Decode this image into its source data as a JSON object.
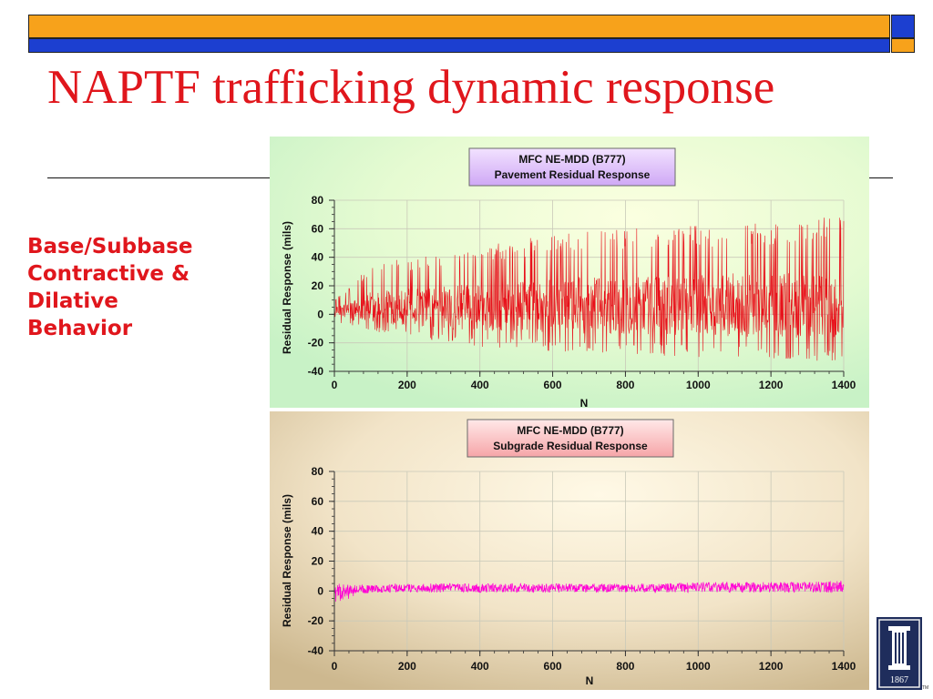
{
  "slide": {
    "title": "NAPTF trafficking dynamic response",
    "side_lines": [
      "Base/Subbase",
      "Contractive &",
      "Dilative",
      "Behavior"
    ],
    "colors": {
      "title": "#e0161c",
      "bar_orange": "#f7a21b",
      "bar_blue": "#1c3fd0"
    },
    "logo": {
      "icon": "university-column-logo",
      "year": "1867",
      "mark": "TM"
    }
  },
  "chart_data": [
    {
      "type": "line",
      "title": [
        "MFC NE-MDD (B777)",
        "Pavement Residual Response"
      ],
      "xlabel": "N",
      "ylabel": "Residual Response (mils)",
      "xlim": [
        0,
        1400
      ],
      "ylim": [
        -40,
        80
      ],
      "xticks": [
        0,
        200,
        400,
        600,
        800,
        1000,
        1200,
        1400
      ],
      "yticks": [
        -40,
        -20,
        0,
        20,
        40,
        60,
        80
      ],
      "grid": true,
      "series": [
        {
          "color": "#e8101a",
          "envelope": {
            "n": [
              0,
              100,
              200,
              300,
              400,
              500,
              600,
              700,
              800,
              900,
              1000,
              1100,
              1200,
              1300,
              1400
            ],
            "upper": [
              10,
              35,
              40,
              44,
              48,
              52,
              56,
              58,
              60,
              62,
              63,
              64,
              65,
              68,
              70
            ],
            "lower": [
              -5,
              -12,
              -16,
              -20,
              -23,
              -24,
              -26,
              -27,
              -28,
              -29,
              -30,
              -31,
              -32,
              -33,
              -34
            ]
          }
        }
      ]
    },
    {
      "type": "line",
      "title": [
        "MFC NE-MDD (B777)",
        "Subgrade Residual Response"
      ],
      "xlabel": "N",
      "ylabel": "Residual Response (mils)",
      "xlim": [
        0,
        1400
      ],
      "ylim": [
        -40,
        80
      ],
      "xticks": [
        0,
        200,
        400,
        600,
        800,
        1000,
        1200,
        1400
      ],
      "yticks": [
        -40,
        -20,
        0,
        20,
        40,
        60,
        80
      ],
      "grid": true,
      "series": [
        {
          "color": "#ff00d6",
          "envelope": {
            "n": [
              0,
              100,
              200,
              300,
              400,
              500,
              600,
              700,
              800,
              900,
              1000,
              1100,
              1200,
              1300,
              1400
            ],
            "upper": [
              5,
              4,
              5,
              5,
              5,
              5,
              5,
              5,
              5,
              5,
              6,
              6,
              6,
              6,
              7
            ],
            "lower": [
              -8,
              -1,
              -1,
              -1,
              -1,
              -1,
              -1,
              -1,
              -1,
              -1,
              -1,
              -1,
              -1,
              -1,
              -1
            ]
          }
        }
      ]
    }
  ]
}
